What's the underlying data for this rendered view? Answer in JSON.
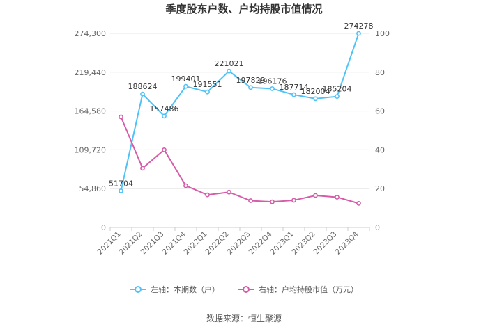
{
  "chart_data": {
    "type": "line",
    "title": "季度股东户数、户均持股市值情况",
    "categories": [
      "2021Q1",
      "2021Q2",
      "2021Q3",
      "2021Q4",
      "2022Q1",
      "2022Q2",
      "2022Q3",
      "2022Q4",
      "2023Q1",
      "2023Q2",
      "2023Q3",
      "2023Q4"
    ],
    "left_axis": {
      "ticks": [
        "0",
        "54,860",
        "109,720",
        "164,580",
        "219,440",
        "274,300"
      ],
      "ylim": [
        0,
        274300
      ]
    },
    "right_axis": {
      "ticks": [
        "0",
        "20",
        "40",
        "60",
        "80",
        "100"
      ],
      "ylim": [
        0,
        100
      ]
    },
    "series": [
      {
        "name": "左轴：本期数（户）",
        "axis": "left",
        "color": "#4FC3F7",
        "values": [
          51704,
          188624,
          157486,
          199401,
          191551,
          221021,
          197829,
          196176,
          187714,
          182004,
          185204,
          274278
        ],
        "labels": [
          "51704",
          "188624",
          "157486",
          "199401",
          "191551",
          "221021",
          "197829",
          "196176",
          "187714",
          "182004",
          "185204",
          "274278"
        ]
      },
      {
        "name": "右轴：户均持股市值（万元）",
        "axis": "right",
        "color": "#D65BA8",
        "values": [
          57.0,
          30.5,
          40.0,
          21.5,
          16.8,
          18.2,
          13.8,
          13.2,
          14.0,
          16.5,
          15.6,
          12.4
        ]
      }
    ],
    "grid": true,
    "legend_position": "bottom"
  },
  "source_text": "数据来源：恒生聚源"
}
